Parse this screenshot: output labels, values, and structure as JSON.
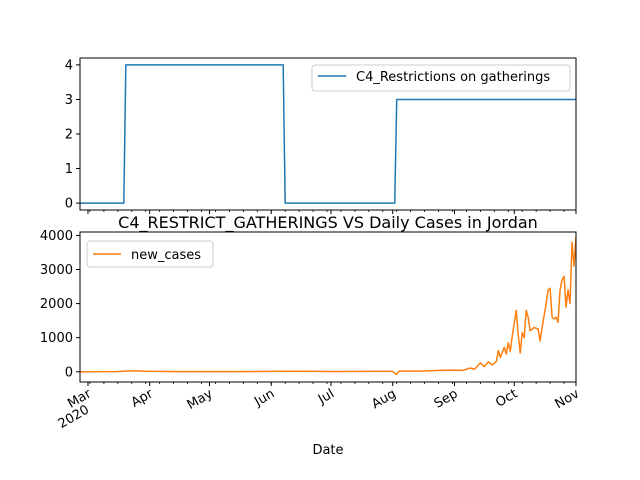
{
  "chart_data": [
    {
      "type": "line",
      "title": "",
      "xlabel": "",
      "ylabel": "",
      "x_range": [
        "2020-02-26",
        "2020-11-01"
      ],
      "ylim": [
        -0.2,
        4.2
      ],
      "yticks": [
        "0",
        "1",
        "2",
        "3",
        "4"
      ],
      "grid": false,
      "legend_position": "upper right",
      "series": [
        {
          "name": "C4_Restrictions on gatherings",
          "color": "#1f77b4",
          "points": [
            [
              "2020-02-26",
              0
            ],
            [
              "2020-03-19",
              0
            ],
            [
              "2020-03-20",
              4
            ],
            [
              "2020-06-07",
              4
            ],
            [
              "2020-06-08",
              0
            ],
            [
              "2020-08-02",
              0
            ],
            [
              "2020-08-03",
              3
            ],
            [
              "2020-11-01",
              3
            ]
          ]
        }
      ]
    },
    {
      "type": "line",
      "title": "C4_RESTRICT_GATHERINGS VS Daily Cases in Jordan",
      "xlabel": "Date",
      "ylabel": "",
      "x_range": [
        "2020-02-26",
        "2020-11-01"
      ],
      "ylim": [
        -300,
        4100
      ],
      "yticks": [
        "0",
        "1000",
        "2000",
        "3000",
        "4000"
      ],
      "xticks": [
        {
          "date": "2020-03-01",
          "label": "Mar",
          "sublabel": "2020"
        },
        {
          "date": "2020-04-01",
          "label": "Apr"
        },
        {
          "date": "2020-05-01",
          "label": "May"
        },
        {
          "date": "2020-06-01",
          "label": "Jun"
        },
        {
          "date": "2020-07-01",
          "label": "Jul"
        },
        {
          "date": "2020-08-01",
          "label": "Aug"
        },
        {
          "date": "2020-09-01",
          "label": "Sep"
        },
        {
          "date": "2020-10-01",
          "label": "Oct"
        },
        {
          "date": "2020-11-01",
          "label": "Nov"
        }
      ],
      "grid": false,
      "legend_position": "upper left",
      "series": [
        {
          "name": "new_cases",
          "color": "#ff7f0e",
          "points": [
            [
              "2020-02-26",
              0
            ],
            [
              "2020-03-15",
              5
            ],
            [
              "2020-03-20",
              20
            ],
            [
              "2020-03-25",
              30
            ],
            [
              "2020-03-30",
              15
            ],
            [
              "2020-04-05",
              10
            ],
            [
              "2020-04-15",
              5
            ],
            [
              "2020-05-01",
              3
            ],
            [
              "2020-05-15",
              5
            ],
            [
              "2020-06-01",
              10
            ],
            [
              "2020-06-15",
              15
            ],
            [
              "2020-07-01",
              8
            ],
            [
              "2020-07-20",
              10
            ],
            [
              "2020-08-01",
              10
            ],
            [
              "2020-08-03",
              -80
            ],
            [
              "2020-08-04",
              20
            ],
            [
              "2020-08-15",
              20
            ],
            [
              "2020-08-25",
              40
            ],
            [
              "2020-09-01",
              50
            ],
            [
              "2020-09-05",
              40
            ],
            [
              "2020-09-09",
              110
            ],
            [
              "2020-09-11",
              70
            ],
            [
              "2020-09-14",
              260
            ],
            [
              "2020-09-16",
              150
            ],
            [
              "2020-09-18",
              290
            ],
            [
              "2020-09-20",
              200
            ],
            [
              "2020-09-22",
              300
            ],
            [
              "2020-09-23",
              620
            ],
            [
              "2020-09-24",
              420
            ],
            [
              "2020-09-26",
              720
            ],
            [
              "2020-09-27",
              520
            ],
            [
              "2020-09-28",
              850
            ],
            [
              "2020-09-29",
              600
            ],
            [
              "2020-09-30",
              1050
            ],
            [
              "2020-10-02",
              1800
            ],
            [
              "2020-10-03",
              1100
            ],
            [
              "2020-10-04",
              550
            ],
            [
              "2020-10-05",
              1150
            ],
            [
              "2020-10-06",
              1000
            ],
            [
              "2020-10-07",
              1800
            ],
            [
              "2020-10-08",
              1600
            ],
            [
              "2020-10-09",
              1200
            ],
            [
              "2020-10-11",
              1300
            ],
            [
              "2020-10-13",
              1250
            ],
            [
              "2020-10-14",
              900
            ],
            [
              "2020-10-15",
              1300
            ],
            [
              "2020-10-17",
              2000
            ],
            [
              "2020-10-18",
              2400
            ],
            [
              "2020-10-19",
              2450
            ],
            [
              "2020-10-20",
              1600
            ],
            [
              "2020-10-21",
              1550
            ],
            [
              "2020-10-22",
              1600
            ],
            [
              "2020-10-23",
              1450
            ],
            [
              "2020-10-24",
              2400
            ],
            [
              "2020-10-25",
              2700
            ],
            [
              "2020-10-26",
              2800
            ],
            [
              "2020-10-27",
              1900
            ],
            [
              "2020-10-28",
              2400
            ],
            [
              "2020-10-29",
              2000
            ],
            [
              "2020-10-30",
              3800
            ],
            [
              "2020-10-31",
              3100
            ],
            [
              "2020-11-01",
              3950
            ],
            [
              "2020-11-02",
              3300
            ],
            [
              "2020-11-03",
              3250
            ]
          ]
        }
      ]
    }
  ]
}
